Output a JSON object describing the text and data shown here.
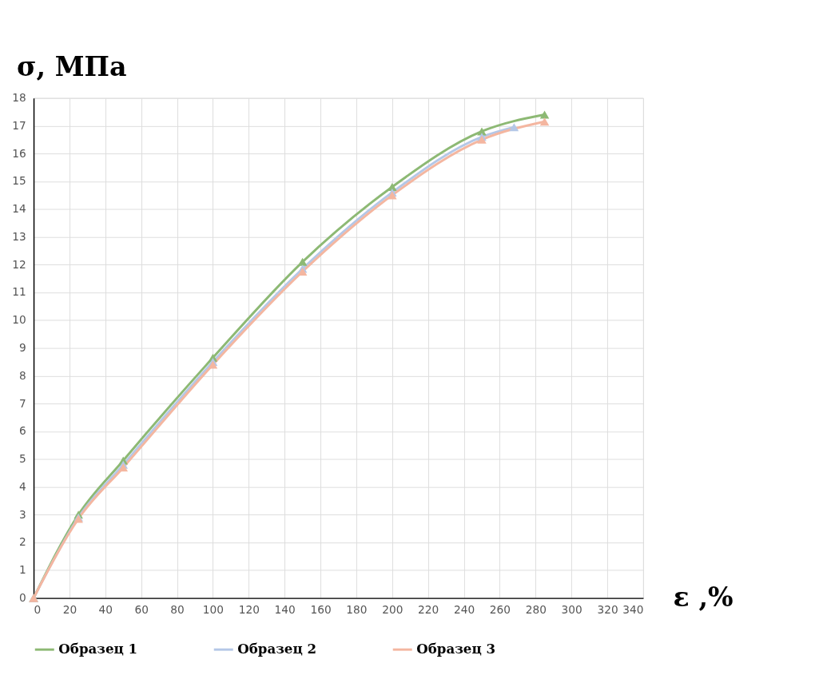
{
  "chart_data": {
    "type": "line",
    "xlabel": "ε ,%",
    "ylabel": "σ, МПа",
    "xlim": [
      0,
      340
    ],
    "xticks": [
      0,
      20,
      40,
      60,
      80,
      100,
      120,
      140,
      160,
      180,
      200,
      220,
      240,
      260,
      280,
      300,
      320,
      340
    ],
    "ylim": [
      0,
      18
    ],
    "yticks": [
      0,
      1,
      2,
      3,
      4,
      5,
      6,
      7,
      8,
      9,
      10,
      11,
      12,
      13,
      14,
      15,
      16,
      17,
      18
    ],
    "grid": true,
    "legend": "bottom",
    "marker": "triangle",
    "line_style": "solid",
    "series": [
      {
        "name": "Образец 1",
        "color": "#8db974",
        "x": [
          0,
          25,
          50,
          100,
          150,
          200,
          250,
          285
        ],
        "values": [
          0,
          3.0,
          4.95,
          8.65,
          12.1,
          14.8,
          16.8,
          17.4
        ]
      },
      {
        "name": "Образец 2",
        "color": "#b4c7e7",
        "x": [
          0,
          25,
          50,
          100,
          150,
          200,
          250,
          268
        ],
        "values": [
          0,
          2.9,
          4.8,
          8.5,
          11.85,
          14.6,
          16.6,
          16.95
        ]
      },
      {
        "name": "Образец 3",
        "color": "#f4b6a0",
        "x": [
          0,
          25,
          50,
          100,
          150,
          200,
          250,
          285
        ],
        "values": [
          0,
          2.85,
          4.7,
          8.4,
          11.75,
          14.5,
          16.5,
          17.15
        ]
      }
    ]
  }
}
